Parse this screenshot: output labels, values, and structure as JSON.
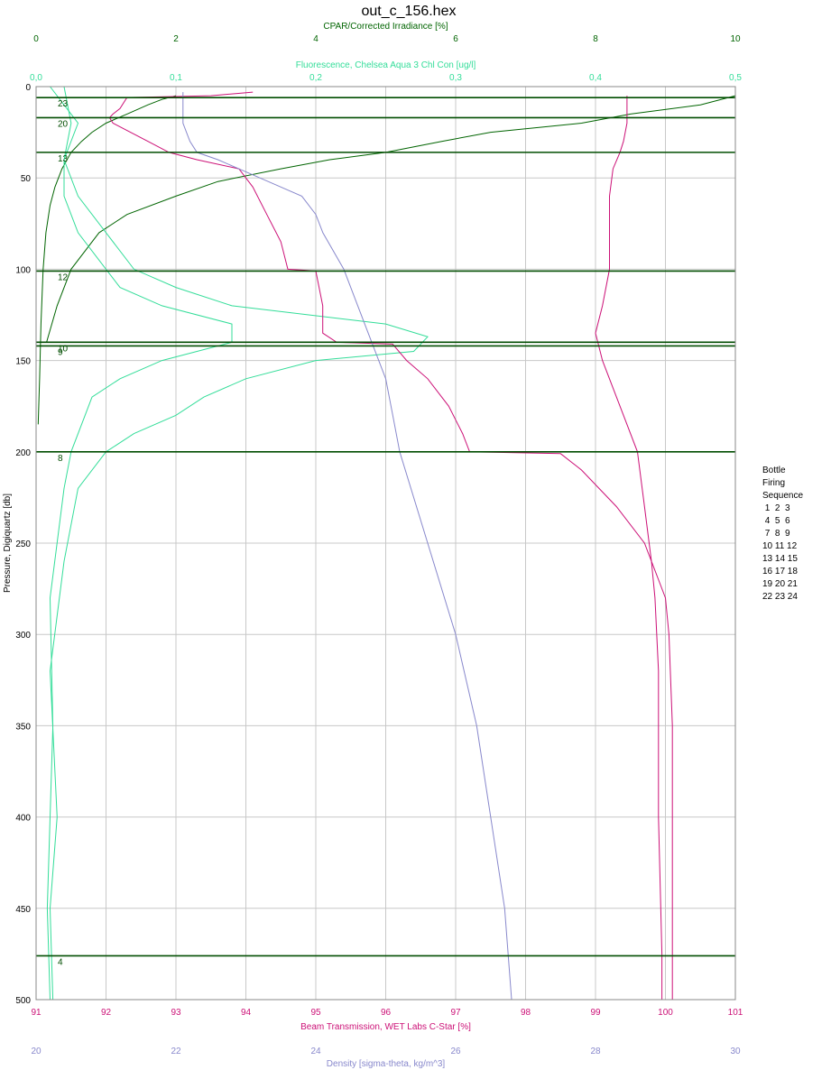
{
  "chart_data": {
    "type": "line",
    "title": "out_c_156.hex",
    "y_axis": {
      "label": "Pressure, Digiquartz [db]",
      "range": [
        0,
        500
      ],
      "inverted": true,
      "ticks": [
        "0",
        "50",
        "100",
        "150",
        "200",
        "250",
        "300",
        "350",
        "400",
        "450",
        "500"
      ],
      "color": "#000000"
    },
    "top_axes": [
      {
        "label": "CPAR/Corrected Irradiance [%]",
        "range": [
          0,
          10
        ],
        "ticks": [
          "0",
          "2",
          "4",
          "6",
          "8",
          "10"
        ],
        "color": "#006400"
      },
      {
        "label": "Fluorescence, Chelsea Aqua 3 Chl Con [ug/l]",
        "range": [
          0,
          0.5
        ],
        "ticks": [
          "0,0",
          "0,1",
          "0,2",
          "0,3",
          "0,4",
          "0,5"
        ],
        "color": "#33dd99"
      }
    ],
    "bottom_axes": [
      {
        "label": "Beam Transmission, WET Labs C-Star [%]",
        "range": [
          91,
          101
        ],
        "ticks": [
          "91",
          "92",
          "93",
          "94",
          "95",
          "96",
          "97",
          "98",
          "99",
          "100",
          "101"
        ],
        "color": "#cc1177"
      },
      {
        "label": "Density [sigma-theta, kg/m^3]",
        "range": [
          20,
          30
        ],
        "ticks": [
          "20",
          "22",
          "24",
          "26",
          "28",
          "30"
        ],
        "color": "#8888cc"
      }
    ],
    "grid": true,
    "series": [
      {
        "axis": "CPAR/Corrected Irradiance [%]",
        "color": "#006400",
        "points": [
          [
            5,
            2
          ],
          [
            7,
            1.8
          ],
          [
            10,
            1.6
          ],
          [
            15,
            1.3
          ],
          [
            20,
            1.0
          ],
          [
            25,
            0.8
          ],
          [
            30,
            0.65
          ],
          [
            36,
            0.5
          ],
          [
            45,
            0.37
          ],
          [
            55,
            0.27
          ],
          [
            65,
            0.2
          ],
          [
            80,
            0.14
          ],
          [
            100,
            0.1
          ],
          [
            130,
            0.07
          ],
          [
            160,
            0.05
          ],
          [
            185,
            0.03
          ]
        ]
      },
      {
        "axis": "CPAR/Corrected Irradiance [%]",
        "color": "#006400",
        "points": [
          [
            5,
            10
          ],
          [
            10,
            9.5
          ],
          [
            15,
            8.5
          ],
          [
            20,
            7.8
          ],
          [
            25,
            6.5
          ],
          [
            30,
            5.8
          ],
          [
            36,
            5.0
          ],
          [
            40,
            4.2
          ],
          [
            45,
            3.5
          ],
          [
            52,
            2.6
          ],
          [
            60,
            2.0
          ],
          [
            70,
            1.3
          ],
          [
            80,
            0.9
          ],
          [
            100,
            0.5
          ],
          [
            120,
            0.3
          ],
          [
            140,
            0.15
          ]
        ]
      },
      {
        "axis": "Fluorescence, Chelsea Aqua 3 Chl Con [ug/l]",
        "color": "#33dd99",
        "points": [
          [
            0,
            0.01
          ],
          [
            20,
            0.03
          ],
          [
            40,
            0.02
          ],
          [
            60,
            0.03
          ],
          [
            80,
            0.05
          ],
          [
            100,
            0.07
          ],
          [
            110,
            0.1
          ],
          [
            120,
            0.14
          ],
          [
            130,
            0.25
          ],
          [
            137,
            0.28
          ],
          [
            145,
            0.27
          ],
          [
            150,
            0.2
          ],
          [
            160,
            0.15
          ],
          [
            170,
            0.12
          ],
          [
            180,
            0.1
          ],
          [
            190,
            0.07
          ],
          [
            200,
            0.05
          ],
          [
            220,
            0.03
          ],
          [
            260,
            0.02
          ],
          [
            320,
            0.01
          ],
          [
            400,
            0.015
          ],
          [
            450,
            0.01
          ],
          [
            500,
            0.012
          ]
        ]
      },
      {
        "axis": "Fluorescence, Chelsea Aqua 3 Chl Con [ug/l]",
        "color": "#33dd99",
        "points": [
          [
            0,
            0.02
          ],
          [
            20,
            0.025
          ],
          [
            40,
            0.02
          ],
          [
            60,
            0.02
          ],
          [
            80,
            0.03
          ],
          [
            100,
            0.05
          ],
          [
            110,
            0.06
          ],
          [
            120,
            0.09
          ],
          [
            130,
            0.14
          ],
          [
            140,
            0.14
          ],
          [
            150,
            0.09
          ],
          [
            160,
            0.06
          ],
          [
            170,
            0.04
          ],
          [
            180,
            0.035
          ],
          [
            200,
            0.025
          ],
          [
            220,
            0.02
          ],
          [
            280,
            0.01
          ],
          [
            350,
            0.012
          ],
          [
            450,
            0.008
          ],
          [
            500,
            0.01
          ]
        ]
      },
      {
        "axis": "Beam Transmission, WET Labs C-Star [%]",
        "color": "#cc1177",
        "points": [
          [
            3,
            94.1
          ],
          [
            5,
            93.5
          ],
          [
            6,
            92.3
          ],
          [
            12,
            92.2
          ],
          [
            15,
            92.1
          ],
          [
            17,
            92.05
          ],
          [
            20,
            92.1
          ],
          [
            30,
            92.6
          ],
          [
            36,
            92.9
          ],
          [
            40,
            93.3
          ],
          [
            45,
            93.9
          ],
          [
            55,
            94.1
          ],
          [
            70,
            94.3
          ],
          [
            85,
            94.5
          ],
          [
            100,
            94.6
          ],
          [
            101,
            95.0
          ],
          [
            120,
            95.1
          ],
          [
            135,
            95.1
          ],
          [
            140,
            95.3
          ],
          [
            141,
            96.1
          ],
          [
            150,
            96.3
          ],
          [
            160,
            96.6
          ],
          [
            175,
            96.9
          ],
          [
            190,
            97.1
          ],
          [
            200,
            97.2
          ],
          [
            201,
            98.5
          ],
          [
            210,
            98.8
          ],
          [
            230,
            99.3
          ],
          [
            250,
            99.7
          ],
          [
            270,
            99.9
          ],
          [
            280,
            100.0
          ],
          [
            300,
            100.05
          ],
          [
            350,
            100.1
          ],
          [
            400,
            100.1
          ],
          [
            475,
            100.1
          ],
          [
            500,
            100.1
          ]
        ]
      },
      {
        "axis": "Beam Transmission, WET Labs C-Star [%]",
        "color": "#cc1177",
        "points": [
          [
            5,
            99.45
          ],
          [
            15,
            99.45
          ],
          [
            20,
            99.45
          ],
          [
            30,
            99.4
          ],
          [
            36,
            99.35
          ],
          [
            45,
            99.25
          ],
          [
            60,
            99.2
          ],
          [
            80,
            99.2
          ],
          [
            100,
            99.2
          ],
          [
            120,
            99.1
          ],
          [
            135,
            99.0
          ],
          [
            150,
            99.1
          ],
          [
            180,
            99.4
          ],
          [
            200,
            99.6
          ],
          [
            230,
            99.7
          ],
          [
            260,
            99.8
          ],
          [
            280,
            99.85
          ],
          [
            320,
            99.9
          ],
          [
            400,
            99.9
          ],
          [
            475,
            99.95
          ],
          [
            500,
            99.95
          ]
        ]
      },
      {
        "axis": "Density [sigma-theta, kg/m^3]",
        "color": "#8888cc",
        "points": [
          [
            3,
            22.1
          ],
          [
            20,
            22.1
          ],
          [
            30,
            22.2
          ],
          [
            36,
            22.3
          ],
          [
            40,
            22.6
          ],
          [
            45,
            22.9
          ],
          [
            50,
            23.2
          ],
          [
            55,
            23.5
          ],
          [
            60,
            23.8
          ],
          [
            70,
            24.0
          ],
          [
            80,
            24.1
          ],
          [
            100,
            24.4
          ],
          [
            120,
            24.6
          ],
          [
            140,
            24.8
          ],
          [
            160,
            25.0
          ],
          [
            180,
            25.1
          ],
          [
            200,
            25.2
          ],
          [
            250,
            25.6
          ],
          [
            300,
            26.0
          ],
          [
            350,
            26.3
          ],
          [
            400,
            26.5
          ],
          [
            450,
            26.7
          ],
          [
            500,
            26.8
          ]
        ]
      }
    ],
    "bottle_markers": [
      {
        "pressure": 6,
        "label": "23"
      },
      {
        "pressure": 17,
        "label": "20"
      },
      {
        "pressure": 36,
        "label": "13"
      },
      {
        "pressure": 101,
        "label": "12"
      },
      {
        "pressure": 140,
        "label": "10"
      },
      {
        "pressure": 142,
        "label": "9"
      },
      {
        "pressure": 200,
        "label": "8"
      },
      {
        "pressure": 476,
        "label": "4"
      }
    ]
  },
  "legend": {
    "lines": [
      "Bottle",
      "Firing",
      "Sequence",
      " 1  2  3",
      " 4  5  6",
      " 7  8  9",
      "10 11 12",
      "13 14 15",
      "16 17 18",
      "19 20 21",
      "22 23 24"
    ]
  }
}
